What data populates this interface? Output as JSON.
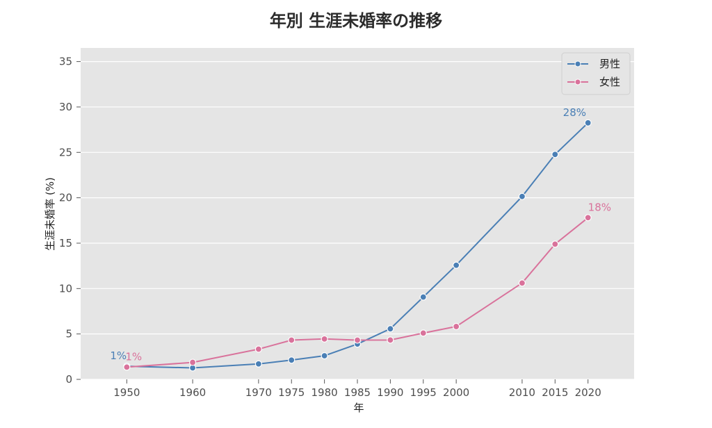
{
  "chart_data": {
    "type": "line",
    "title": "年別 生涯未婚率の推移",
    "xlabel": "年",
    "ylabel": "生涯未婚率 (%)",
    "x": [
      1950,
      1960,
      1970,
      1975,
      1980,
      1985,
      1990,
      1995,
      2000,
      2010,
      2015,
      2020
    ],
    "xlim": [
      1943,
      2027
    ],
    "ylim": [
      0,
      36.5
    ],
    "yticks": [
      0,
      5,
      10,
      15,
      20,
      25,
      30,
      35
    ],
    "grid": true,
    "legend_position": "top-right",
    "series": [
      {
        "name": "男性",
        "color": "#4a7fb5",
        "values": [
          1.45,
          1.26,
          1.7,
          2.12,
          2.6,
          3.89,
          5.57,
          9.07,
          12.57,
          20.14,
          24.77,
          28.25
        ],
        "end_labels": {
          "first": "1%",
          "last": "28%"
        }
      },
      {
        "name": "女性",
        "color": "#d9729b",
        "values": [
          1.35,
          1.87,
          3.33,
          4.32,
          4.45,
          4.32,
          4.33,
          5.1,
          5.82,
          10.61,
          14.89,
          17.81
        ],
        "end_labels": {
          "first": "1%",
          "last": "18%"
        }
      }
    ]
  }
}
